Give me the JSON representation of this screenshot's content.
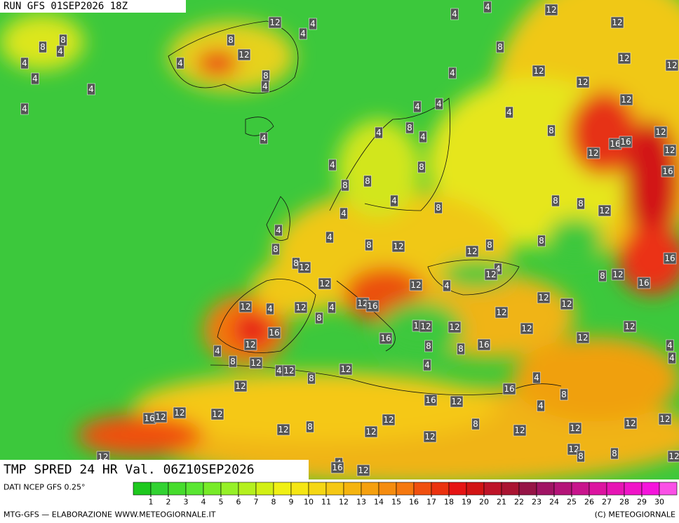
{
  "header": {
    "run": "RUN GFS 01SEP2026 18Z"
  },
  "footer": {
    "product": "TMP SPRED 24 HR Val. 06Z10SEP2026",
    "source": "DATI NCEP GFS 0.25°",
    "credit": "MTG-GFS — ELABORAZIONE WWW.METEOGIORNALE.IT",
    "copyright": "(C) METEOGIORNALE"
  },
  "colorbar": {
    "ticks": [
      1,
      2,
      3,
      4,
      5,
      6,
      7,
      8,
      9,
      10,
      11,
      12,
      13,
      14,
      15,
      16,
      17,
      18,
      19,
      20,
      21,
      22,
      23,
      24,
      25,
      26,
      27,
      28,
      29,
      30
    ],
    "colors": [
      "#1ec81e",
      "#32d232",
      "#46dc2d",
      "#5ae632",
      "#78eb28",
      "#96f028",
      "#b4f01e",
      "#d2f014",
      "#f0f014",
      "#f5e614",
      "#f5d714",
      "#f5c814",
      "#f5b40f",
      "#f5a00f",
      "#f58c0f",
      "#f5780f",
      "#f0500f",
      "#eb320f",
      "#e61414",
      "#d21414",
      "#be1428",
      "#aa1432",
      "#961446",
      "#a01464",
      "#b41478",
      "#c8148c",
      "#dc14a0",
      "#e614b4",
      "#f014c8",
      "#f514dc",
      "#fa50e6"
    ]
  },
  "map_labels": [
    12,
    12,
    4,
    4,
    12,
    4,
    4,
    8,
    8,
    8,
    4,
    12,
    4,
    4,
    8,
    4,
    4,
    4,
    4,
    8,
    12,
    12,
    12,
    4,
    12,
    12,
    4,
    4,
    4,
    8,
    8,
    12,
    4,
    4,
    4,
    16,
    16,
    12,
    12,
    4,
    8,
    16,
    8,
    8,
    8,
    8,
    12,
    4,
    8,
    4,
    4,
    4,
    8,
    8,
    12,
    8,
    12,
    8,
    8,
    12,
    16,
    4,
    8,
    12,
    16,
    12,
    4,
    12,
    12,
    12,
    12,
    4,
    12,
    4,
    12,
    16,
    12,
    8,
    16,
    12,
    12,
    16,
    12,
    12,
    12,
    12,
    16,
    4,
    8,
    8,
    16,
    4,
    4,
    8,
    12,
    4,
    12,
    8,
    12,
    4,
    4,
    12,
    16,
    8,
    16,
    12,
    4,
    12,
    12,
    16,
    12,
    8,
    12,
    8,
    12,
    12,
    12,
    12,
    12,
    12,
    12,
    12,
    8,
    8,
    12,
    4,
    16,
    12,
    12,
    12,
    4
  ]
}
